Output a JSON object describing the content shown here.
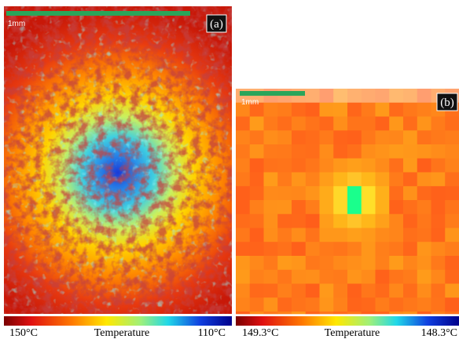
{
  "panels": [
    {
      "label": "(a)",
      "scale_bar": "1mm",
      "colorbar": {
        "min_label": "150°C",
        "title": "Temperature",
        "max_label": "110°C"
      }
    },
    {
      "label": "(b)",
      "scale_bar": "1mm",
      "colorbar": {
        "min_label": "149.3°C",
        "title": "Temperature",
        "max_label": "148.3°C"
      }
    }
  ]
}
